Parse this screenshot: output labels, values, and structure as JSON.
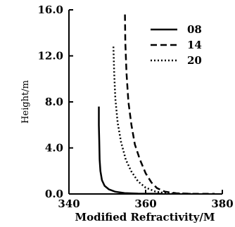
{
  "chart_data": {
    "type": "line",
    "title": "",
    "xlabel": "Modified Refractivity/M",
    "ylabel": "Height/m",
    "xlim": [
      340,
      380
    ],
    "ylim": [
      0,
      16
    ],
    "xticks": [
      "340",
      "360",
      "380"
    ],
    "yticks": [
      "0.0",
      "4.0",
      "8.0",
      "12.0",
      "16.0"
    ],
    "legend_position": "top-right",
    "series": [
      {
        "name": "08",
        "style": "solid",
        "points": [
          [
            347.8,
            7.6
          ],
          [
            347.8,
            6.0
          ],
          [
            347.9,
            4.5
          ],
          [
            348.0,
            3.0
          ],
          [
            348.2,
            2.0
          ],
          [
            348.6,
            1.2
          ],
          [
            349.3,
            0.7
          ],
          [
            350.4,
            0.4
          ],
          [
            352.0,
            0.2
          ],
          [
            354.5,
            0.08
          ],
          [
            358.0,
            0.03
          ],
          [
            364.0,
            0.01
          ]
        ]
      },
      {
        "name": "14",
        "style": "dashed",
        "points": [
          [
            354.6,
            15.6
          ],
          [
            354.7,
            13.2
          ],
          [
            355.0,
            10.5
          ],
          [
            355.5,
            8.0
          ],
          [
            356.3,
            6.0
          ],
          [
            357.2,
            4.3
          ],
          [
            358.5,
            3.0
          ],
          [
            360.0,
            1.8
          ],
          [
            361.5,
            1.0
          ],
          [
            363.0,
            0.5
          ],
          [
            365.0,
            0.2
          ],
          [
            368.0,
            0.06
          ],
          [
            372.0,
            0.02
          ],
          [
            378.0,
            0.01
          ]
        ]
      },
      {
        "name": "20",
        "style": "dotted",
        "points": [
          [
            351.6,
            12.8
          ],
          [
            351.8,
            10.5
          ],
          [
            352.1,
            8.3
          ],
          [
            352.7,
            6.2
          ],
          [
            353.6,
            4.5
          ],
          [
            354.8,
            3.0
          ],
          [
            356.2,
            2.0
          ],
          [
            358.0,
            1.1
          ],
          [
            360.0,
            0.55
          ],
          [
            362.5,
            0.22
          ],
          [
            365.0,
            0.08
          ],
          [
            368.0,
            0.03
          ],
          [
            372.0,
            0.01
          ]
        ]
      }
    ],
    "grid": false
  }
}
